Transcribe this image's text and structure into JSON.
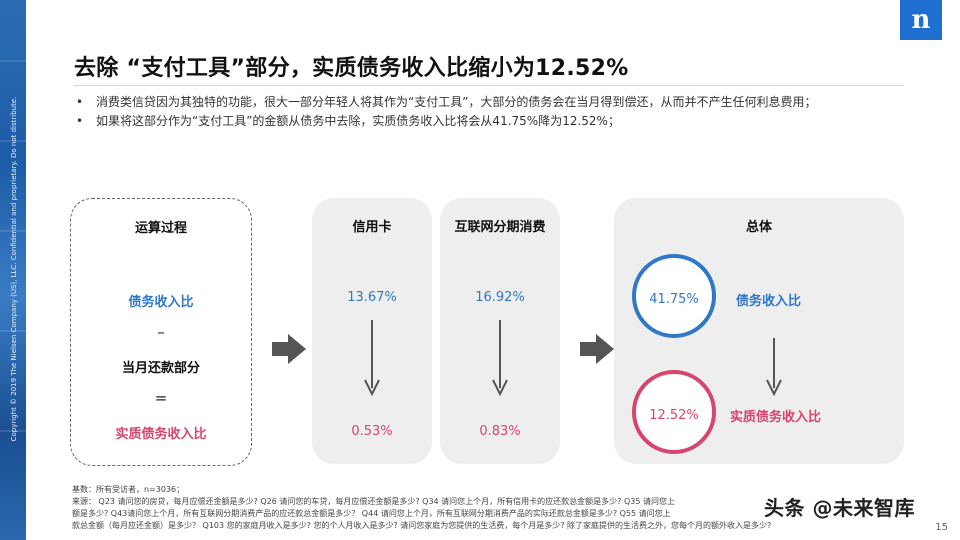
{
  "brand": {
    "logo_letter": "n",
    "logo_color": "#1e6fd0"
  },
  "copyright": "Copyright © 2019 The Nielsen Company (US), LLC. Confidential and proprietary. Do not distribute.",
  "title": "去除 “支付工具”部分，实质债务收入比缩小为12.52%",
  "bullets": [
    "消费类信贷因为其独特的功能，很大一部分年轻人将其作为“支付工具”，大部分的债务会在当月得到偿还，从而并不产生任何利息费用；",
    "如果将这部分作为“支付工具”的金额从债务中去除，实质债务收入比将会从41.75%降为12.52%；"
  ],
  "process": {
    "header": "运算过程",
    "line1": "债务收入比",
    "op1": "–",
    "line2": "当月还款部分",
    "op2": "=",
    "line3": "实质债务收入比"
  },
  "credit_card": {
    "header": "信用卡",
    "ratio": "13.67%",
    "after": "0.53%"
  },
  "installment": {
    "header": "互联网分期消费",
    "ratio": "16.92%",
    "after": "0.83%"
  },
  "total": {
    "header": "总体",
    "ratio_value": "41.75%",
    "ratio_label": "债务收入比",
    "net_value": "12.52%",
    "net_label": "实质债务收入比"
  },
  "colors": {
    "blue": "#2f78c8",
    "pink": "#d6456b",
    "panel": "#eeeeee"
  },
  "footnote": {
    "base": "基数：所有受访者，n=3036；",
    "source_1": "来源：  Q23 请问您的房贷，每月应偿还金额是多少? Q26 请问您的车贷，每月应偿还金额是多少? Q34 请问您上个月，所有信用卡的应还款总金额是多少? Q35 请问您上",
    "source_2": "额是多少? Q43请问您上个月，所有互联网分期消费产品的应还款总金额是多少？  Q44 请问您上个月，所有互联网分期消费产品的实际还款总金额是多少? Q55 请问您上",
    "source_3": "款总金额（每月应还金额）是多少？ Q103 您的家庭月收入是多少? 您的个人月收入是多少? 请问您家庭为您提供的生活费，每个月是多少? 除了家庭提供的生活费之外，您每个月的额外收入是多少?"
  },
  "page_number": "15",
  "watermark": "头条 @未来智库"
}
